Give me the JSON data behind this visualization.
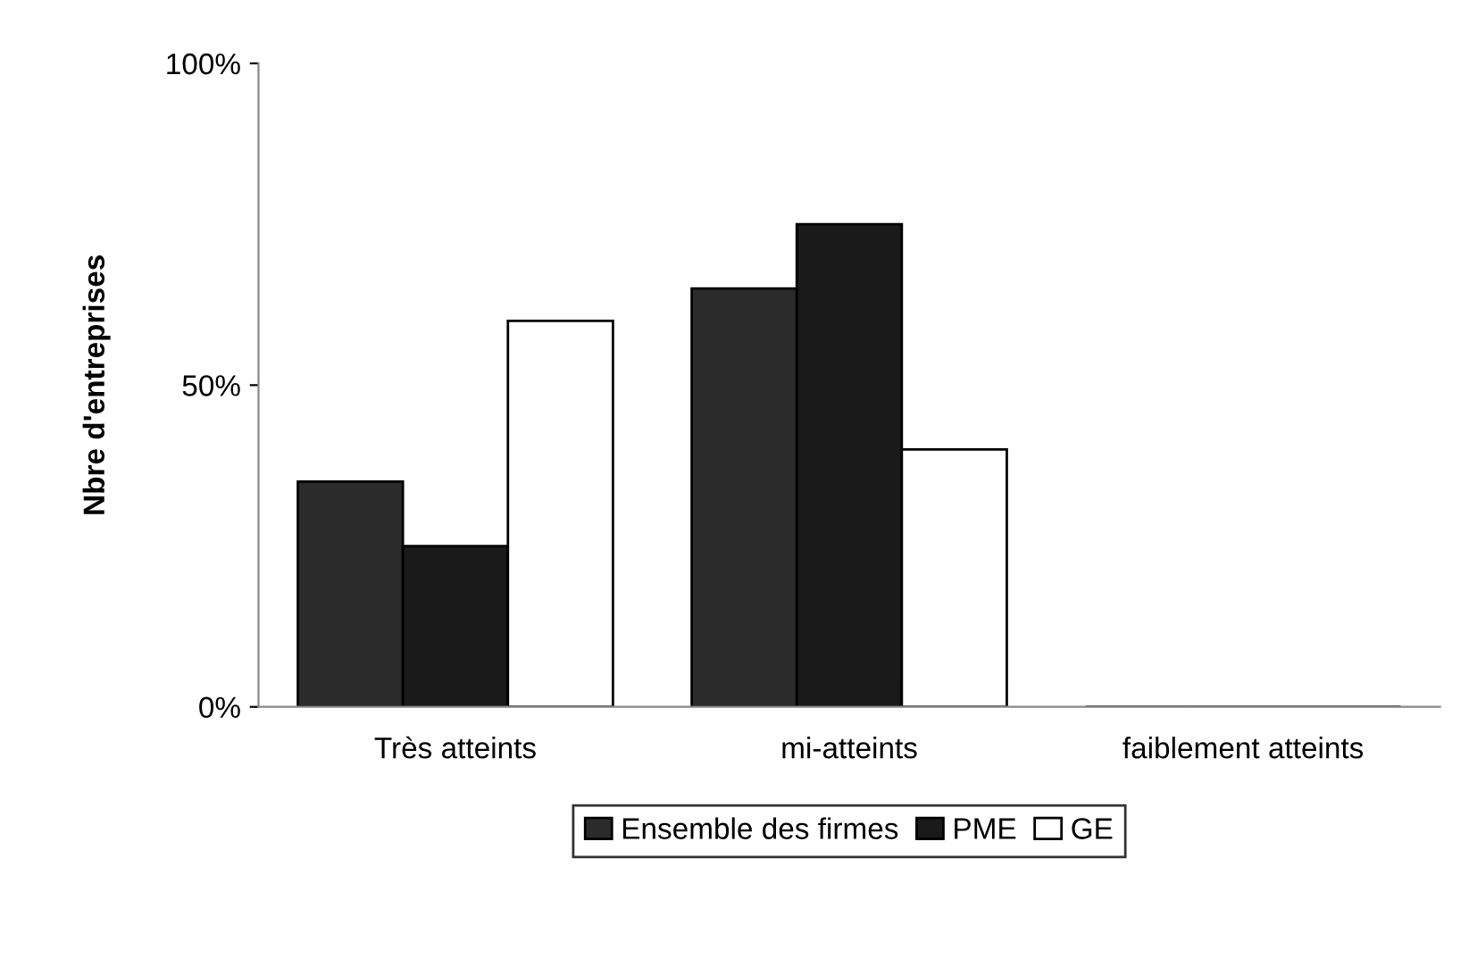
{
  "chart_data": {
    "type": "bar",
    "ylabel": "Nbre d'entreprises",
    "categories": [
      "Très atteints",
      "mi-atteints",
      "faiblement atteints"
    ],
    "series": [
      {
        "name": "Ensemble des firmes",
        "color": "#2b2b2b",
        "values": [
          35,
          65,
          0
        ]
      },
      {
        "name": "PME",
        "color": "#1a1a1a",
        "values": [
          25,
          75,
          0
        ]
      },
      {
        "name": "GE",
        "color": "#ffffff",
        "values": [
          60,
          40,
          0
        ]
      }
    ],
    "ylim": [
      0,
      100
    ],
    "yticks": [
      {
        "value": 0,
        "label": "0%"
      },
      {
        "value": 50,
        "label": "50%"
      },
      {
        "value": 100,
        "label": "100%"
      }
    ],
    "grid": false,
    "legend": "bottom"
  }
}
